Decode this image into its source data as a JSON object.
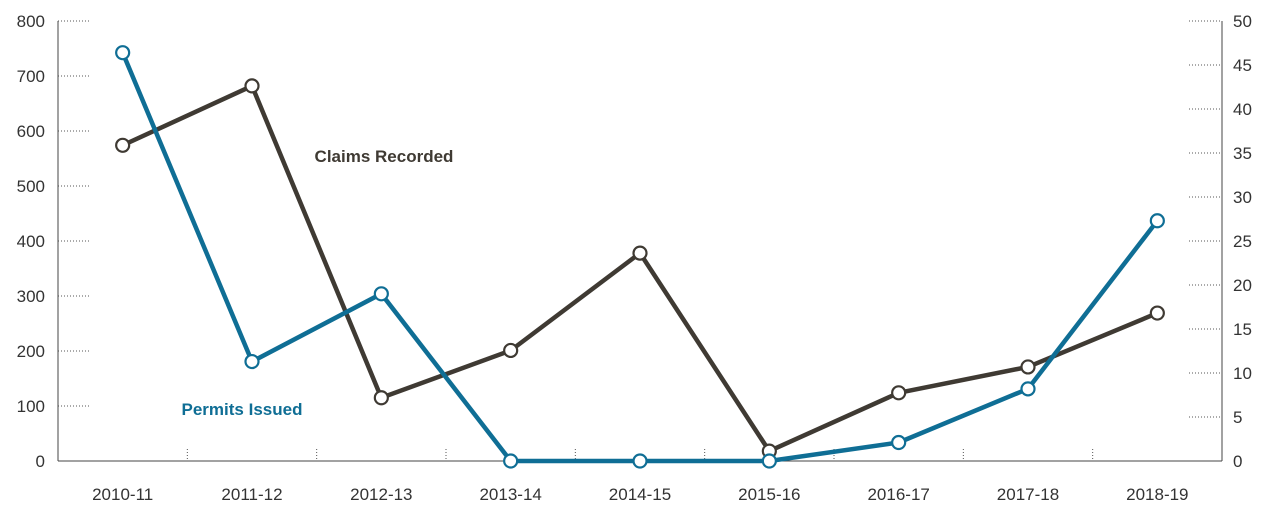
{
  "chart_data": {
    "type": "line",
    "categories": [
      "2010-11",
      "2011-12",
      "2012-13",
      "2013-14",
      "2014-15",
      "2015-16",
      "2016-17",
      "2017-18",
      "2018-19"
    ],
    "left_axis": {
      "min": 0,
      "max": 800,
      "ticks": [
        0,
        100,
        200,
        300,
        400,
        500,
        600,
        700,
        800
      ]
    },
    "right_axis": {
      "min": 0,
      "max": 50,
      "ticks": [
        0,
        5,
        10,
        15,
        20,
        25,
        30,
        35,
        40,
        45,
        50
      ]
    },
    "series": [
      {
        "name": "Claims Recorded",
        "axis": "left",
        "color": "#3f3a33",
        "values": [
          574,
          682,
          115,
          201,
          378,
          18,
          124,
          171,
          269
        ]
      },
      {
        "name": "Permits Issued",
        "axis": "right",
        "color": "#0f6e95",
        "values": [
          46.4,
          11.3,
          19,
          0,
          0,
          0,
          2.1,
          8.2,
          27.3
        ]
      }
    ],
    "grid": false,
    "legend": "inline labels"
  }
}
